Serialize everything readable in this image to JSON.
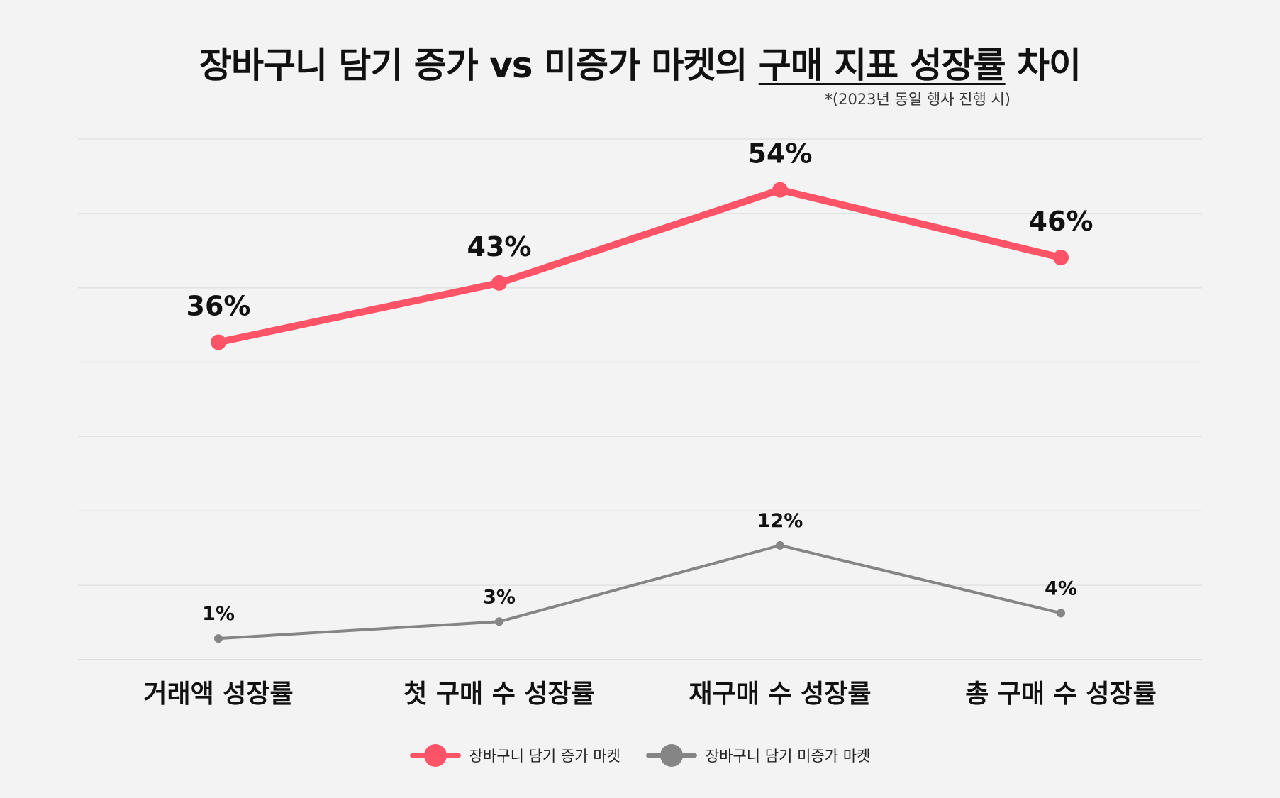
{
  "chart_data": {
    "type": "line",
    "title": {
      "main": "장바구니 담기 증가 vs 미증가 마켓의 ",
      "highlight": "구매 지표 성장률",
      "tail": " 차이"
    },
    "subtitle": "*(2023년 동일 행사 진행 시)",
    "categories": [
      "거래액 성장률",
      "첫 구매 수 성장률",
      "재구매 수 성장률",
      "총 구매 수 성장률"
    ],
    "series": [
      {
        "name": "장바구니 담기 증가 마켓",
        "values": [
          36,
          43,
          54,
          46
        ],
        "labels": [
          "36%",
          "43%",
          "54%",
          "46%"
        ],
        "color": "#ff5468"
      },
      {
        "name": "장바구니 담기 미증가 마켓",
        "values": [
          1,
          3,
          12,
          4
        ],
        "labels": [
          "1%",
          "3%",
          "12%",
          "4%"
        ],
        "color": "#858585"
      }
    ],
    "ylim": [
      -1.5,
      60
    ],
    "grid": true,
    "legend": "bottom-center"
  }
}
